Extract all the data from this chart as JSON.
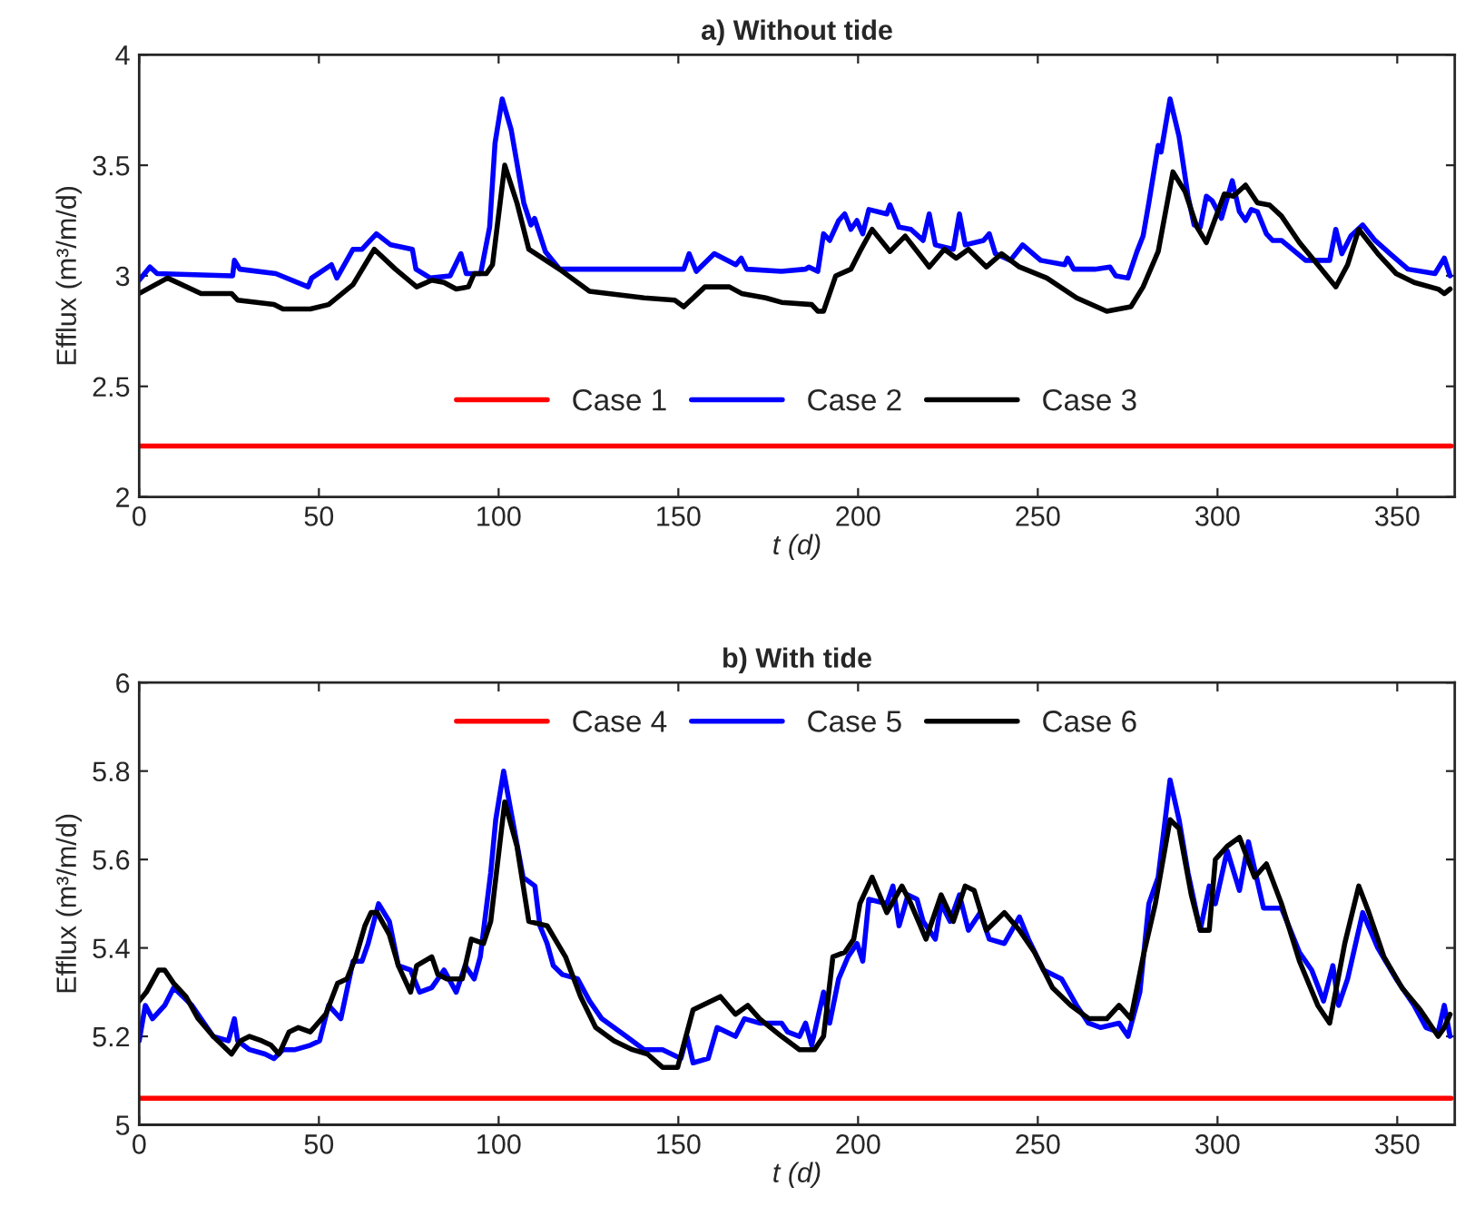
{
  "chart_data": [
    {
      "type": "line",
      "title": "a) Without tide",
      "xlabel": "t (d)",
      "ylabel": "Efflux (m³/m/d)",
      "xlim": [
        0,
        366
      ],
      "ylim": [
        2,
        4
      ],
      "xticks": [
        0,
        50,
        100,
        150,
        200,
        250,
        300,
        350
      ],
      "yticks": [
        2,
        2.5,
        3,
        3.5,
        4
      ],
      "grid": false,
      "legend": "bottom",
      "line_style": "solid",
      "marker": "none",
      "series": [
        {
          "name": "Case 1",
          "color": "#ff0000",
          "x": [
            0,
            365
          ],
          "values": [
            2.23,
            2.23
          ]
        },
        {
          "name": "Case 2",
          "color": "#0000ff",
          "x": [
            0,
            3,
            5,
            26,
            26.5,
            28,
            38,
            47,
            48,
            53.5,
            55,
            59.5,
            62,
            66,
            70,
            76,
            77,
            81,
            86.5,
            89.5,
            91,
            95,
            97.5,
            99,
            101,
            103.5,
            107,
            109,
            110,
            113,
            117,
            140,
            151.5,
            153,
            155,
            160,
            166,
            167.5,
            169,
            178.7,
            185.4,
            186.3,
            188.8,
            190.4,
            192.1,
            194.6,
            196.3,
            198,
            199.7,
            201.3,
            203,
            208,
            208.9,
            211.4,
            214.7,
            218.1,
            219.8,
            221.5,
            226.5,
            228.2,
            229.8,
            234.9,
            236.5,
            238.2,
            242.4,
            245.8,
            250.8,
            257.5,
            258.3,
            260,
            265.9,
            270.1,
            271.7,
            275.1,
            277.6,
            279.3,
            280.9,
            283.5,
            284.3,
            286.8,
            289.3,
            291.8,
            293.5,
            295.2,
            296.9,
            298.5,
            301.1,
            304.1,
            306.1,
            307.8,
            309.4,
            311.1,
            313.6,
            315.3,
            317.8,
            324.5,
            331.2,
            332.9,
            334.6,
            337.1,
            340.4,
            343.8,
            348,
            353,
            360.5,
            363.1,
            364.7
          ],
          "values": [
            2.98,
            3.04,
            3.01,
            3.0,
            3.07,
            3.03,
            3.01,
            2.95,
            2.99,
            3.05,
            2.99,
            3.12,
            3.12,
            3.19,
            3.14,
            3.12,
            3.03,
            2.99,
            3.0,
            3.1,
            3.01,
            3.01,
            3.22,
            3.6,
            3.8,
            3.66,
            3.33,
            3.23,
            3.26,
            3.11,
            3.03,
            3.03,
            3.03,
            3.1,
            3.02,
            3.1,
            3.05,
            3.08,
            3.03,
            3.02,
            3.03,
            3.04,
            3.02,
            3.19,
            3.16,
            3.25,
            3.28,
            3.21,
            3.25,
            3.19,
            3.3,
            3.28,
            3.32,
            3.22,
            3.21,
            3.16,
            3.28,
            3.14,
            3.12,
            3.28,
            3.14,
            3.16,
            3.19,
            3.1,
            3.07,
            3.14,
            3.07,
            3.05,
            3.08,
            3.03,
            3.03,
            3.04,
            3.0,
            2.99,
            3.11,
            3.18,
            3.33,
            3.59,
            3.56,
            3.8,
            3.63,
            3.36,
            3.23,
            3.22,
            3.36,
            3.34,
            3.26,
            3.43,
            3.29,
            3.25,
            3.3,
            3.29,
            3.19,
            3.16,
            3.16,
            3.07,
            3.07,
            3.21,
            3.1,
            3.18,
            3.23,
            3.16,
            3.1,
            3.03,
            3.01,
            3.08,
            3.0
          ]
        },
        {
          "name": "Case 3",
          "color": "#000000",
          "x": [
            0,
            7.9,
            17.2,
            25.7,
            27.4,
            37.5,
            40,
            47.6,
            52.7,
            59.5,
            65.4,
            71.3,
            77.2,
            81.4,
            84.8,
            88.2,
            91.6,
            93.2,
            96.6,
            98.3,
            101.7,
            105.1,
            108.4,
            116.9,
            125.3,
            140.5,
            149,
            151.5,
            157.4,
            164.2,
            167.6,
            174.3,
            178.7,
            187.1,
            188.8,
            190.4,
            193.8,
            198,
            200.5,
            203.9,
            208.9,
            213.1,
            219.8,
            224,
            227.3,
            230.7,
            235.7,
            239.9,
            244.9,
            252.5,
            260.8,
            269.2,
            275.9,
            279.3,
            283.5,
            287.6,
            291,
            294.3,
            296.9,
            301.9,
            304.4,
            307.8,
            311.1,
            314.5,
            317.8,
            322.8,
            327.9,
            332.9,
            336.2,
            339.3,
            344.6,
            349.7,
            354.7,
            361.4,
            363.1,
            364.7
          ],
          "values": [
            2.92,
            2.99,
            2.92,
            2.92,
            2.89,
            2.87,
            2.85,
            2.85,
            2.87,
            2.96,
            3.12,
            3.03,
            2.95,
            2.98,
            2.97,
            2.94,
            2.95,
            3.01,
            3.01,
            3.05,
            3.5,
            3.33,
            3.12,
            3.03,
            2.93,
            2.9,
            2.89,
            2.86,
            2.95,
            2.95,
            2.92,
            2.9,
            2.88,
            2.87,
            2.84,
            2.84,
            3.0,
            3.03,
            3.11,
            3.21,
            3.11,
            3.18,
            3.04,
            3.12,
            3.08,
            3.12,
            3.04,
            3.1,
            3.04,
            2.99,
            2.9,
            2.84,
            2.86,
            2.95,
            3.11,
            3.47,
            3.38,
            3.22,
            3.15,
            3.37,
            3.36,
            3.41,
            3.33,
            3.32,
            3.27,
            3.15,
            3.05,
            2.95,
            3.05,
            3.21,
            3.1,
            3.01,
            2.97,
            2.94,
            2.92,
            2.94
          ]
        }
      ]
    },
    {
      "type": "line",
      "title": "b) With tide",
      "xlabel": "t (d)",
      "ylabel": "Efflux (m³/m/d)",
      "xlim": [
        0,
        366
      ],
      "ylim": [
        5,
        6
      ],
      "xticks": [
        0,
        50,
        100,
        150,
        200,
        250,
        300,
        350
      ],
      "yticks": [
        5,
        5.2,
        5.4,
        5.6,
        5.8,
        6
      ],
      "grid": false,
      "legend": "top",
      "line_style": "solid",
      "marker": "none",
      "series": [
        {
          "name": "Case 4",
          "color": "#ff0000",
          "x": [
            0,
            365
          ],
          "values": [
            5.06,
            5.06
          ]
        },
        {
          "name": "Case 5",
          "color": "#0000ff",
          "x": [
            0,
            1.7,
            3.7,
            7.1,
            9.6,
            12.2,
            14.7,
            17.2,
            20.6,
            24.8,
            26.5,
            27.4,
            30.7,
            35,
            37.5,
            40,
            43.4,
            47.6,
            50.2,
            52.7,
            56.1,
            59.5,
            62,
            63.7,
            66.6,
            69.6,
            72.1,
            75.5,
            78,
            81.4,
            84.8,
            88.2,
            90.7,
            93.2,
            94.9,
            97.8,
            99.2,
            101.4,
            103.4,
            106.8,
            110.1,
            111.5,
            113.5,
            115.2,
            117.7,
            122,
            125.3,
            128.7,
            132.1,
            135.5,
            140.5,
            145.6,
            150.7,
            152.4,
            154.1,
            158.3,
            160.8,
            165.9,
            168.4,
            172.6,
            178.7,
            180.4,
            183.7,
            185.4,
            187.1,
            190.4,
            192.1,
            194.6,
            197.2,
            199.7,
            201.3,
            203,
            208,
            209.7,
            211.4,
            213.9,
            216.4,
            218.1,
            221.5,
            223.1,
            225.6,
            228.2,
            230.7,
            234,
            236.5,
            240.7,
            244.9,
            247.4,
            251.6,
            256.6,
            260.8,
            264.1,
            267.5,
            272.6,
            275.1,
            278.4,
            280.9,
            283.5,
            286.8,
            289.3,
            291.8,
            295.2,
            297.7,
            299.4,
            302.7,
            306.1,
            308.6,
            312.8,
            317.8,
            322.8,
            326.2,
            329.5,
            332.1,
            333.7,
            336.2,
            340.4,
            344.6,
            349.7,
            354.7,
            358,
            361.4,
            363.1,
            364.7
          ],
          "values": [
            5.19,
            5.27,
            5.24,
            5.27,
            5.31,
            5.29,
            5.27,
            5.24,
            5.2,
            5.19,
            5.24,
            5.19,
            5.17,
            5.16,
            5.15,
            5.17,
            5.17,
            5.18,
            5.19,
            5.27,
            5.24,
            5.37,
            5.37,
            5.41,
            5.5,
            5.46,
            5.36,
            5.35,
            5.3,
            5.31,
            5.35,
            5.3,
            5.36,
            5.33,
            5.38,
            5.57,
            5.69,
            5.8,
            5.71,
            5.56,
            5.54,
            5.45,
            5.41,
            5.36,
            5.34,
            5.33,
            5.28,
            5.24,
            5.22,
            5.2,
            5.17,
            5.17,
            5.15,
            5.2,
            5.14,
            5.15,
            5.22,
            5.2,
            5.24,
            5.23,
            5.23,
            5.21,
            5.2,
            5.23,
            5.18,
            5.3,
            5.23,
            5.33,
            5.38,
            5.41,
            5.37,
            5.51,
            5.5,
            5.54,
            5.45,
            5.52,
            5.51,
            5.46,
            5.42,
            5.5,
            5.46,
            5.52,
            5.44,
            5.48,
            5.42,
            5.41,
            5.47,
            5.42,
            5.35,
            5.33,
            5.27,
            5.23,
            5.22,
            5.23,
            5.2,
            5.3,
            5.5,
            5.56,
            5.78,
            5.69,
            5.57,
            5.44,
            5.54,
            5.5,
            5.62,
            5.53,
            5.64,
            5.49,
            5.49,
            5.39,
            5.35,
            5.28,
            5.36,
            5.27,
            5.33,
            5.48,
            5.4,
            5.33,
            5.27,
            5.22,
            5.21,
            5.27,
            5.2
          ]
        },
        {
          "name": "Case 6",
          "color": "#000000",
          "x": [
            0,
            2,
            5.4,
            7.1,
            9.6,
            13,
            16.4,
            20.6,
            25.7,
            28.2,
            30.7,
            34.1,
            36.7,
            38.9,
            41.7,
            44.3,
            47.6,
            51.9,
            55.2,
            57.8,
            60.3,
            62.8,
            64.5,
            66.2,
            69.6,
            72.1,
            75.5,
            77.2,
            81.4,
            83.1,
            85.6,
            89.9,
            92.4,
            95.8,
            97.8,
            101.7,
            105.1,
            108.4,
            113.5,
            118.6,
            122.8,
            127,
            132.1,
            137.2,
            141.4,
            145.6,
            149.8,
            154.1,
            161.7,
            165.9,
            169.3,
            172.6,
            178.7,
            183.7,
            187.9,
            190.4,
            193,
            196.3,
            198.8,
            200.5,
            203.9,
            208,
            212.2,
            214.7,
            218.9,
            223.1,
            226.5,
            229.8,
            232.3,
            235.7,
            240.7,
            244.9,
            249.1,
            254.1,
            259.2,
            264.2,
            269.2,
            272.6,
            275.9,
            279.3,
            282.7,
            286.8,
            289.3,
            292.7,
            295.2,
            297.7,
            299.4,
            302.7,
            306.1,
            310.3,
            313.6,
            317.8,
            322.8,
            327.9,
            331.2,
            335.4,
            339.3,
            342.1,
            346.3,
            351.3,
            356.4,
            361.4,
            363.1,
            364.7
          ],
          "values": [
            5.28,
            5.3,
            5.35,
            5.35,
            5.32,
            5.29,
            5.24,
            5.2,
            5.16,
            5.19,
            5.2,
            5.19,
            5.18,
            5.16,
            5.21,
            5.22,
            5.21,
            5.25,
            5.32,
            5.33,
            5.38,
            5.45,
            5.48,
            5.48,
            5.43,
            5.36,
            5.3,
            5.36,
            5.38,
            5.34,
            5.33,
            5.33,
            5.42,
            5.41,
            5.46,
            5.73,
            5.63,
            5.46,
            5.45,
            5.38,
            5.29,
            5.22,
            5.19,
            5.17,
            5.16,
            5.13,
            5.13,
            5.26,
            5.29,
            5.25,
            5.27,
            5.24,
            5.2,
            5.17,
            5.17,
            5.2,
            5.38,
            5.39,
            5.42,
            5.5,
            5.56,
            5.48,
            5.54,
            5.5,
            5.42,
            5.52,
            5.46,
            5.54,
            5.53,
            5.44,
            5.48,
            5.44,
            5.39,
            5.31,
            5.27,
            5.24,
            5.24,
            5.27,
            5.24,
            5.38,
            5.5,
            5.69,
            5.67,
            5.52,
            5.44,
            5.44,
            5.6,
            5.63,
            5.65,
            5.56,
            5.59,
            5.5,
            5.37,
            5.27,
            5.23,
            5.41,
            5.54,
            5.48,
            5.38,
            5.31,
            5.26,
            5.2,
            5.22,
            5.25
          ]
        }
      ]
    }
  ]
}
